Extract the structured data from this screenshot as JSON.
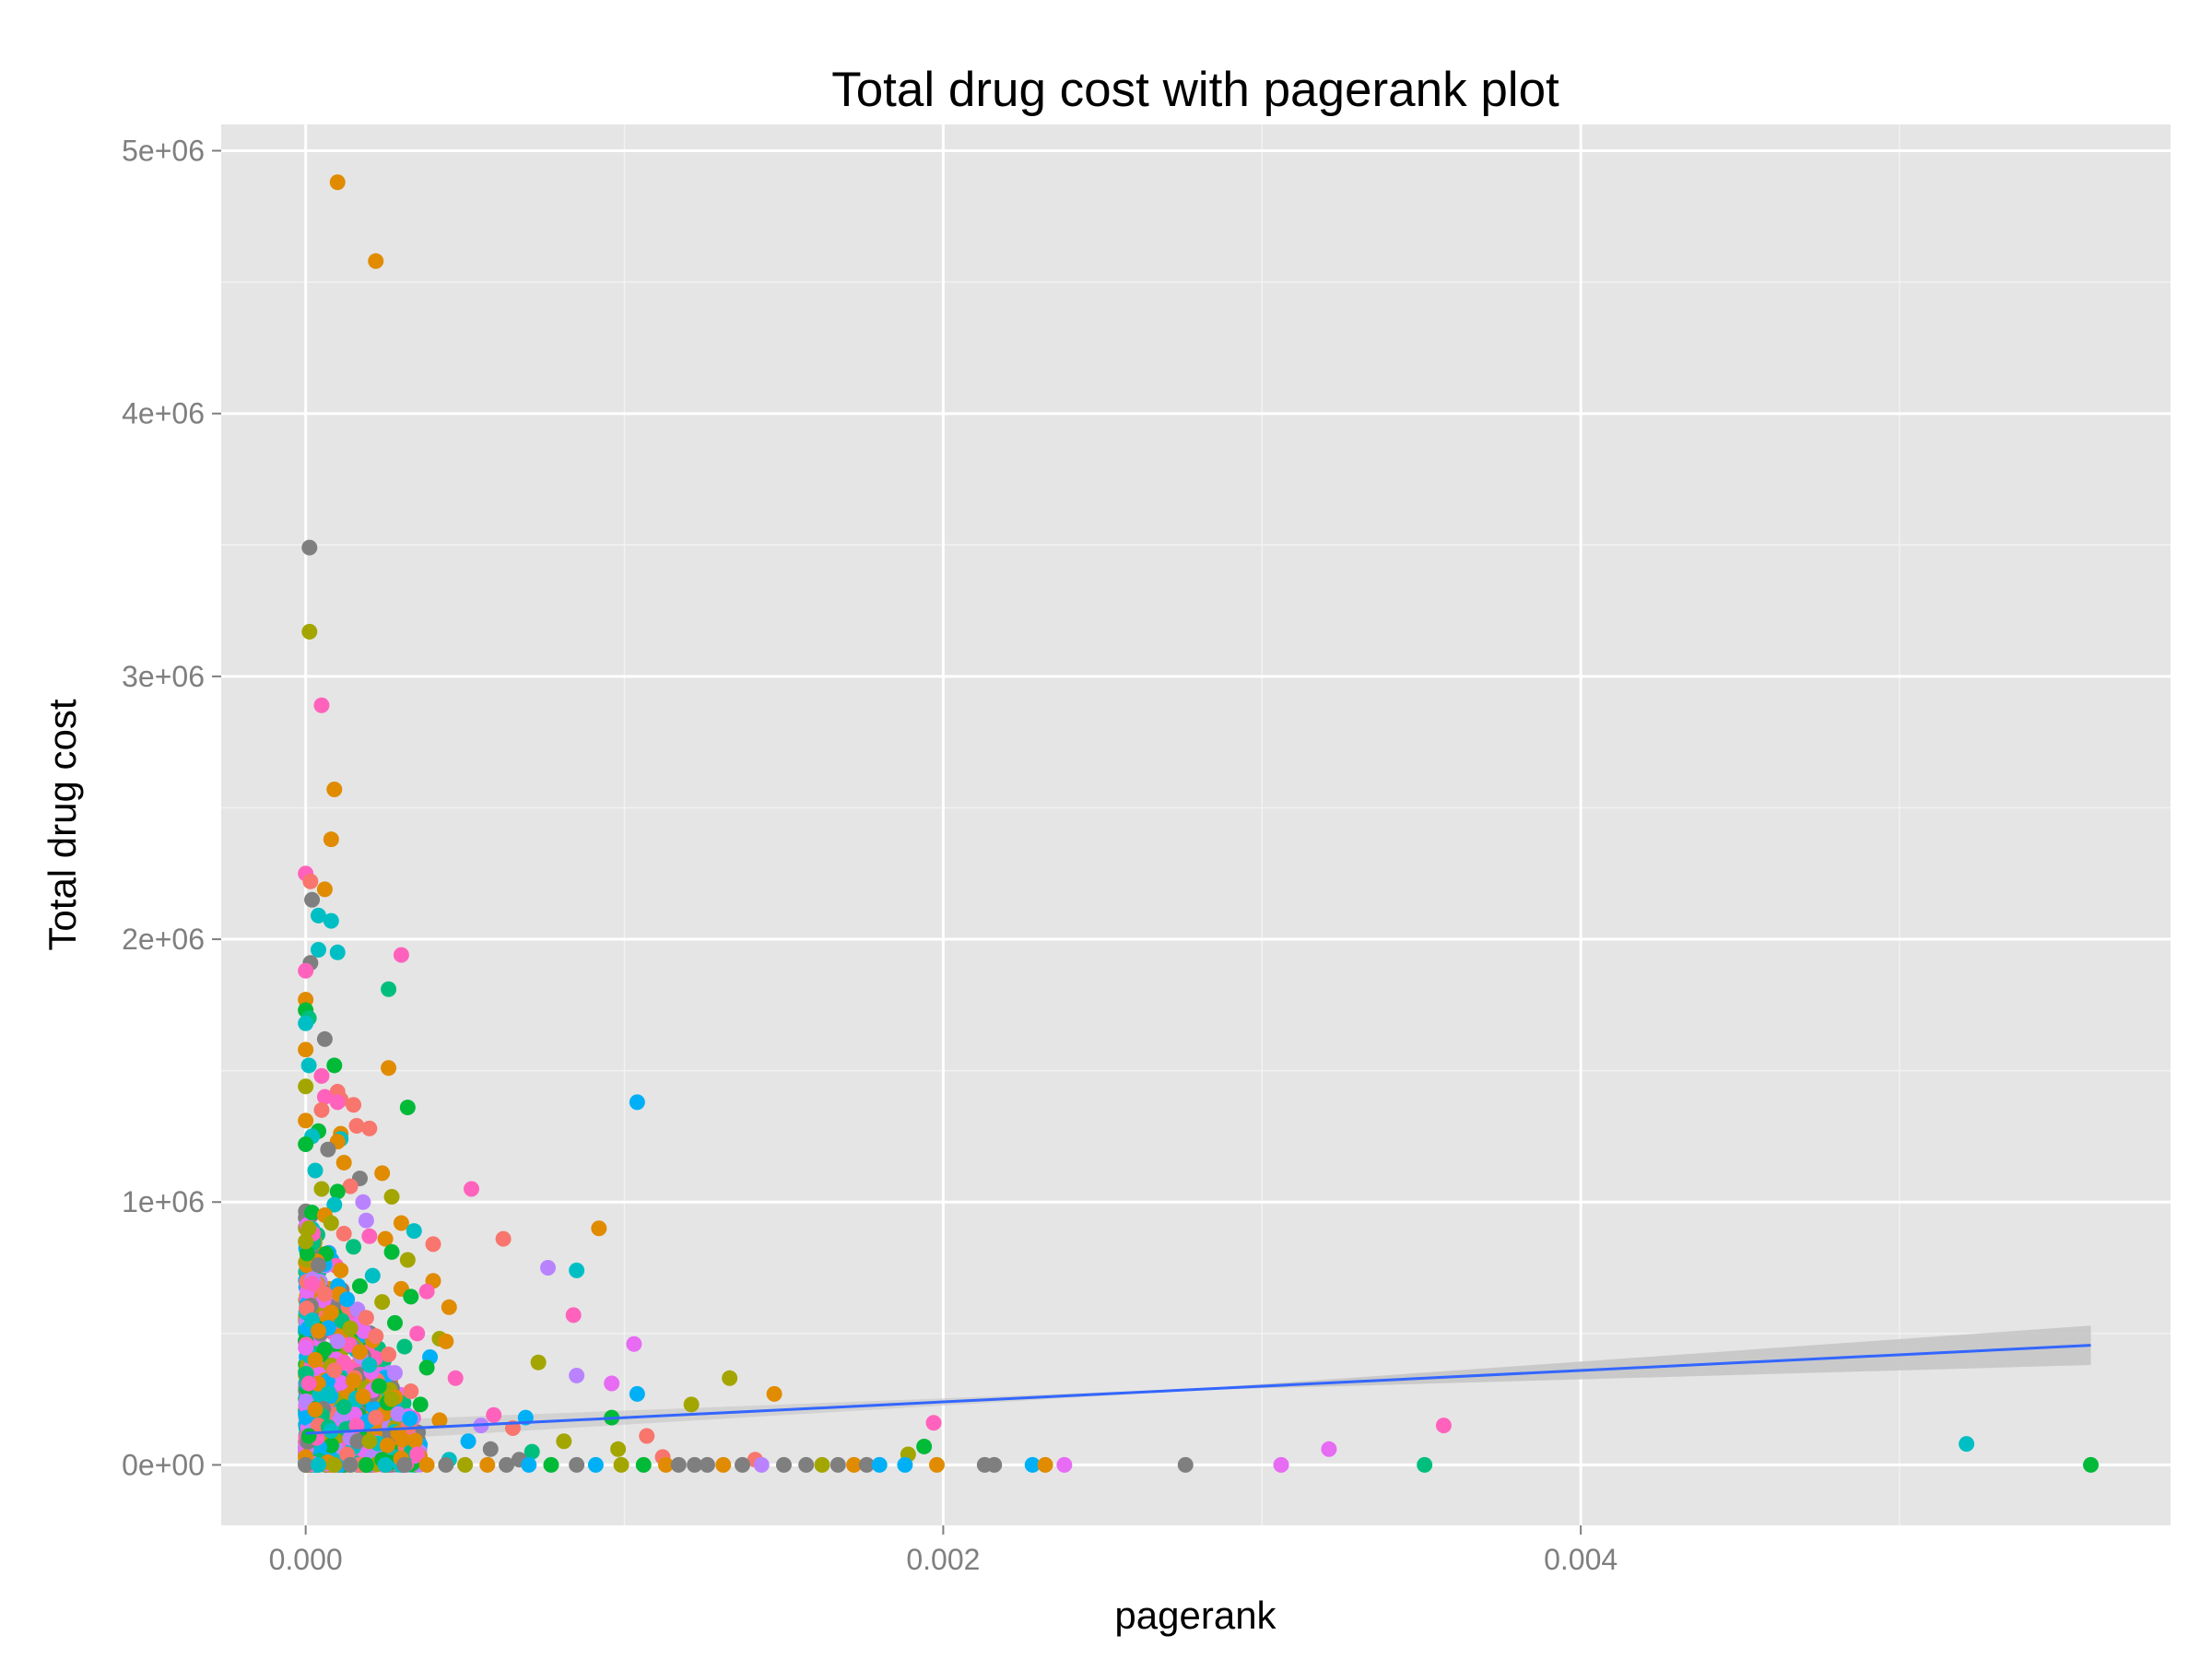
{
  "chart_data": {
    "type": "scatter",
    "title": "Total drug cost with pagerank plot",
    "xlabel": "pagerank",
    "ylabel": "Total drug cost",
    "xlim": [
      -0.000265,
      0.00585
    ],
    "ylim": [
      -230000,
      5100000
    ],
    "x_ticks": [
      0,
      0.002,
      0.004
    ],
    "x_tick_labels": [
      "0.000",
      "0.002",
      "0.004"
    ],
    "y_ticks": [
      0,
      1000000,
      2000000,
      3000000,
      4000000,
      5000000
    ],
    "y_tick_labels": [
      "0e+00",
      "1e+06",
      "2e+06",
      "3e+06",
      "4e+06",
      "5e+06"
    ],
    "grid": true,
    "background": "#e5e5e5",
    "grid_color": "#ffffff",
    "legend": "none",
    "colors": {
      "orange": "#e08b00",
      "olive": "#a3a500",
      "green": "#00bf7d",
      "cyan": "#00b0f6",
      "teal": "#00bfc4",
      "purple": "#b983ff",
      "pink": "#ff62bc",
      "salmon": "#f8766d",
      "gray": "#7f7f7f",
      "darkgreen": "#00ba38",
      "magenta": "#e76bf3",
      "smooth_line": "#3366ff",
      "ribbon": "#c4c4c4"
    },
    "points": [
      {
        "x": 0.0001,
        "y": 4880000,
        "c": "orange"
      },
      {
        "x": 0.00022,
        "y": 4580000,
        "c": "orange"
      },
      {
        "x": 1.2e-05,
        "y": 3490000,
        "c": "gray"
      },
      {
        "x": 1.2e-05,
        "y": 3170000,
        "c": "olive"
      },
      {
        "x": 5e-05,
        "y": 2890000,
        "c": "pink"
      },
      {
        "x": 9e-05,
        "y": 2570000,
        "c": "orange"
      },
      {
        "x": 8e-05,
        "y": 2380000,
        "c": "orange"
      },
      {
        "x": 0.0,
        "y": 2250000,
        "c": "pink"
      },
      {
        "x": 1.5e-05,
        "y": 2220000,
        "c": "salmon"
      },
      {
        "x": 6e-05,
        "y": 2190000,
        "c": "orange"
      },
      {
        "x": 2e-05,
        "y": 2150000,
        "c": "gray"
      },
      {
        "x": 4e-05,
        "y": 2090000,
        "c": "teal"
      },
      {
        "x": 8e-05,
        "y": 2070000,
        "c": "teal"
      },
      {
        "x": 4e-05,
        "y": 1960000,
        "c": "teal"
      },
      {
        "x": 0.0001,
        "y": 1950000,
        "c": "teal"
      },
      {
        "x": 0.0003,
        "y": 1940000,
        "c": "pink"
      },
      {
        "x": 1.5e-05,
        "y": 1910000,
        "c": "gray"
      },
      {
        "x": 0.0,
        "y": 1880000,
        "c": "pink"
      },
      {
        "x": 0.00026,
        "y": 1810000,
        "c": "green"
      },
      {
        "x": 0.0,
        "y": 1770000,
        "c": "orange"
      },
      {
        "x": 0.0,
        "y": 1730000,
        "c": "darkgreen"
      },
      {
        "x": 1e-05,
        "y": 1700000,
        "c": "green"
      },
      {
        "x": 0.0,
        "y": 1680000,
        "c": "teal"
      },
      {
        "x": 6e-05,
        "y": 1620000,
        "c": "gray"
      },
      {
        "x": 0.0,
        "y": 1580000,
        "c": "orange"
      },
      {
        "x": 9e-05,
        "y": 1520000,
        "c": "darkgreen"
      },
      {
        "x": 1e-05,
        "y": 1520000,
        "c": "teal"
      },
      {
        "x": 0.00026,
        "y": 1510000,
        "c": "orange"
      },
      {
        "x": 5e-05,
        "y": 1480000,
        "c": "pink"
      },
      {
        "x": 0.0,
        "y": 1440000,
        "c": "olive"
      },
      {
        "x": 0.0001,
        "y": 1420000,
        "c": "salmon"
      },
      {
        "x": 6e-05,
        "y": 1400000,
        "c": "pink"
      },
      {
        "x": 0.00011,
        "y": 1390000,
        "c": "salmon"
      },
      {
        "x": 0.00015,
        "y": 1370000,
        "c": "salmon"
      },
      {
        "x": 0.0001,
        "y": 1380000,
        "c": "pink"
      },
      {
        "x": 0.00032,
        "y": 1360000,
        "c": "darkgreen"
      },
      {
        "x": 0.00104,
        "y": 1380000,
        "c": "cyan"
      },
      {
        "x": 5e-05,
        "y": 1350000,
        "c": "salmon"
      },
      {
        "x": 0.0,
        "y": 1310000,
        "c": "orange"
      },
      {
        "x": 0.00016,
        "y": 1290000,
        "c": "salmon"
      },
      {
        "x": 0.0002,
        "y": 1280000,
        "c": "salmon"
      },
      {
        "x": 4e-05,
        "y": 1270000,
        "c": "darkgreen"
      },
      {
        "x": 0.00011,
        "y": 1260000,
        "c": "orange"
      },
      {
        "x": 2e-05,
        "y": 1250000,
        "c": "teal"
      },
      {
        "x": 0.00011,
        "y": 1240000,
        "c": "teal"
      },
      {
        "x": 0.0001,
        "y": 1230000,
        "c": "orange"
      },
      {
        "x": 0.0,
        "y": 1220000,
        "c": "darkgreen"
      },
      {
        "x": 7e-05,
        "y": 1200000,
        "c": "gray"
      },
      {
        "x": 0.00012,
        "y": 1150000,
        "c": "orange"
      },
      {
        "x": 3e-05,
        "y": 1120000,
        "c": "teal"
      },
      {
        "x": 0.00024,
        "y": 1110000,
        "c": "orange"
      },
      {
        "x": 0.00017,
        "y": 1090000,
        "c": "gray"
      },
      {
        "x": 0.00014,
        "y": 1060000,
        "c": "salmon"
      },
      {
        "x": 0.00052,
        "y": 1050000,
        "c": "pink"
      },
      {
        "x": 5e-05,
        "y": 1050000,
        "c": "olive"
      },
      {
        "x": 0.0001,
        "y": 1040000,
        "c": "darkgreen"
      },
      {
        "x": 0.00027,
        "y": 1020000,
        "c": "olive"
      },
      {
        "x": 0.00018,
        "y": 1000000,
        "c": "purple"
      },
      {
        "x": 9e-05,
        "y": 990000,
        "c": "teal"
      },
      {
        "x": 2e-05,
        "y": 960000,
        "c": "darkgreen"
      },
      {
        "x": 6e-05,
        "y": 950000,
        "c": "orange"
      },
      {
        "x": 0.00019,
        "y": 930000,
        "c": "purple"
      },
      {
        "x": 8e-05,
        "y": 920000,
        "c": "olive"
      },
      {
        "x": 0.0003,
        "y": 920000,
        "c": "orange"
      },
      {
        "x": 0.00092,
        "y": 900000,
        "c": "orange"
      },
      {
        "x": 0.00034,
        "y": 890000,
        "c": "teal"
      },
      {
        "x": 0.00012,
        "y": 880000,
        "c": "salmon"
      },
      {
        "x": 0.0002,
        "y": 870000,
        "c": "pink"
      },
      {
        "x": 0.00025,
        "y": 860000,
        "c": "orange"
      },
      {
        "x": 0.00062,
        "y": 860000,
        "c": "salmon"
      },
      {
        "x": 0.0,
        "y": 850000,
        "c": "olive"
      },
      {
        "x": 0.0004,
        "y": 840000,
        "c": "salmon"
      },
      {
        "x": 0.00015,
        "y": 830000,
        "c": "green"
      },
      {
        "x": 0.00027,
        "y": 810000,
        "c": "darkgreen"
      },
      {
        "x": 0.00032,
        "y": 780000,
        "c": "olive"
      },
      {
        "x": 0.00076,
        "y": 750000,
        "c": "purple"
      },
      {
        "x": 0.00085,
        "y": 740000,
        "c": "teal"
      },
      {
        "x": 4e-05,
        "y": 760000,
        "c": "gray"
      },
      {
        "x": 0.00011,
        "y": 740000,
        "c": "orange"
      },
      {
        "x": 0.00021,
        "y": 720000,
        "c": "teal"
      },
      {
        "x": 0.0004,
        "y": 700000,
        "c": "orange"
      },
      {
        "x": 2e-05,
        "y": 690000,
        "c": "pink"
      },
      {
        "x": 0.00017,
        "y": 680000,
        "c": "darkgreen"
      },
      {
        "x": 0.0003,
        "y": 670000,
        "c": "orange"
      },
      {
        "x": 0.00038,
        "y": 660000,
        "c": "pink"
      },
      {
        "x": 6e-05,
        "y": 650000,
        "c": "salmon"
      },
      {
        "x": 0.00033,
        "y": 640000,
        "c": "darkgreen"
      },
      {
        "x": 0.00013,
        "y": 630000,
        "c": "cyan"
      },
      {
        "x": 0.00024,
        "y": 620000,
        "c": "olive"
      },
      {
        "x": 0.00045,
        "y": 600000,
        "c": "orange"
      },
      {
        "x": 0.00084,
        "y": 570000,
        "c": "pink"
      },
      {
        "x": 8e-05,
        "y": 580000,
        "c": "orange"
      },
      {
        "x": 0.00019,
        "y": 560000,
        "c": "salmon"
      },
      {
        "x": 2e-05,
        "y": 550000,
        "c": "teal"
      },
      {
        "x": 0.00028,
        "y": 540000,
        "c": "darkgreen"
      },
      {
        "x": 0.00014,
        "y": 520000,
        "c": "olive"
      },
      {
        "x": 4e-05,
        "y": 510000,
        "c": "orange"
      },
      {
        "x": 0.00035,
        "y": 500000,
        "c": "pink"
      },
      {
        "x": 0.00022,
        "y": 490000,
        "c": "salmon"
      },
      {
        "x": 0.00042,
        "y": 480000,
        "c": "olive"
      },
      {
        "x": 0.00044,
        "y": 470000,
        "c": "orange"
      },
      {
        "x": 0.00103,
        "y": 460000,
        "c": "magenta"
      },
      {
        "x": 0.0001,
        "y": 470000,
        "c": "purple"
      },
      {
        "x": 0.00031,
        "y": 450000,
        "c": "green"
      },
      {
        "x": 6e-05,
        "y": 440000,
        "c": "darkgreen"
      },
      {
        "x": 0.00017,
        "y": 430000,
        "c": "orange"
      },
      {
        "x": 0.00026,
        "y": 420000,
        "c": "salmon"
      },
      {
        "x": 0.00039,
        "y": 410000,
        "c": "cyan"
      },
      {
        "x": 3e-05,
        "y": 400000,
        "c": "orange"
      },
      {
        "x": 0.00073,
        "y": 390000,
        "c": "olive"
      },
      {
        "x": 0.00012,
        "y": 390000,
        "c": "pink"
      },
      {
        "x": 0.0002,
        "y": 380000,
        "c": "teal"
      },
      {
        "x": 0.00038,
        "y": 370000,
        "c": "darkgreen"
      },
      {
        "x": 9e-05,
        "y": 360000,
        "c": "salmon"
      },
      {
        "x": 0.00028,
        "y": 350000,
        "c": "purple"
      },
      {
        "x": 0.00085,
        "y": 340000,
        "c": "purple"
      },
      {
        "x": 0.00133,
        "y": 330000,
        "c": "olive"
      },
      {
        "x": 0.00047,
        "y": 330000,
        "c": "pink"
      },
      {
        "x": 0.00015,
        "y": 320000,
        "c": "orange"
      },
      {
        "x": 1e-05,
        "y": 310000,
        "c": "pink"
      },
      {
        "x": 0.00096,
        "y": 310000,
        "c": "magenta"
      },
      {
        "x": 0.00023,
        "y": 300000,
        "c": "darkgreen"
      },
      {
        "x": 0.00104,
        "y": 270000,
        "c": "cyan"
      },
      {
        "x": 0.00147,
        "y": 270000,
        "c": "orange"
      },
      {
        "x": 0.00033,
        "y": 280000,
        "c": "salmon"
      },
      {
        "x": 7e-05,
        "y": 270000,
        "c": "teal"
      },
      {
        "x": 0.00018,
        "y": 260000,
        "c": "orange"
      },
      {
        "x": 0.00027,
        "y": 250000,
        "c": "olive"
      },
      {
        "x": 0.00121,
        "y": 230000,
        "c": "olive"
      },
      {
        "x": 0.00036,
        "y": 230000,
        "c": "darkgreen"
      },
      {
        "x": 0.00012,
        "y": 220000,
        "c": "green"
      },
      {
        "x": 3e-05,
        "y": 210000,
        "c": "orange"
      },
      {
        "x": 0.00059,
        "y": 190000,
        "c": "pink"
      },
      {
        "x": 0.00069,
        "y": 180000,
        "c": "cyan"
      },
      {
        "x": 0.00096,
        "y": 180000,
        "c": "darkgreen"
      },
      {
        "x": 0.00197,
        "y": 160000,
        "c": "pink"
      },
      {
        "x": 0.00357,
        "y": 150000,
        "c": "pink"
      },
      {
        "x": 0.00022,
        "y": 180000,
        "c": "salmon"
      },
      {
        "x": 0.00042,
        "y": 170000,
        "c": "orange"
      },
      {
        "x": 0.00055,
        "y": 150000,
        "c": "purple"
      },
      {
        "x": 0.00016,
        "y": 150000,
        "c": "pink"
      },
      {
        "x": 0.00065,
        "y": 140000,
        "c": "salmon"
      },
      {
        "x": 8e-05,
        "y": 130000,
        "c": "teal"
      },
      {
        "x": 0.00029,
        "y": 120000,
        "c": "orange"
      },
      {
        "x": 0.00107,
        "y": 110000,
        "c": "salmon"
      },
      {
        "x": 1e-05,
        "y": 110000,
        "c": "darkgreen"
      },
      {
        "x": 0.00081,
        "y": 90000,
        "c": "olive"
      },
      {
        "x": 0.00051,
        "y": 90000,
        "c": "cyan"
      },
      {
        "x": 0.0002,
        "y": 90000,
        "c": "olive"
      },
      {
        "x": 0.00521,
        "y": 80000,
        "c": "teal"
      },
      {
        "x": 0.00194,
        "y": 70000,
        "c": "darkgreen"
      },
      {
        "x": 0.00321,
        "y": 60000,
        "c": "magenta"
      },
      {
        "x": 0.00098,
        "y": 60000,
        "c": "olive"
      },
      {
        "x": 0.00058,
        "y": 60000,
        "c": "gray"
      },
      {
        "x": 0.00071,
        "y": 50000,
        "c": "green"
      },
      {
        "x": 0.00189,
        "y": 40000,
        "c": "olive"
      },
      {
        "x": 0.00035,
        "y": 40000,
        "c": "pink"
      },
      {
        "x": 0.00013,
        "y": 40000,
        "c": "salmon"
      },
      {
        "x": 0.0,
        "y": 30000,
        "c": "orange"
      },
      {
        "x": 0.00112,
        "y": 30000,
        "c": "salmon"
      },
      {
        "x": 0.00141,
        "y": 20000,
        "c": "salmon"
      },
      {
        "x": 0.00067,
        "y": 20000,
        "c": "gray"
      },
      {
        "x": 0.00045,
        "y": 20000,
        "c": "teal"
      },
      {
        "x": 0.00024,
        "y": 20000,
        "c": "darkgreen"
      },
      {
        "x": 7e-05,
        "y": 10000,
        "c": "orange"
      },
      {
        "x": 0.0,
        "y": 0,
        "c": "gray"
      },
      {
        "x": 4e-05,
        "y": 0,
        "c": "teal"
      },
      {
        "x": 9e-05,
        "y": 0,
        "c": "olive"
      },
      {
        "x": 0.00014,
        "y": 0,
        "c": "gray"
      },
      {
        "x": 0.00019,
        "y": 0,
        "c": "darkgreen"
      },
      {
        "x": 0.00025,
        "y": 0,
        "c": "teal"
      },
      {
        "x": 0.00031,
        "y": 0,
        "c": "gray"
      },
      {
        "x": 0.00038,
        "y": 0,
        "c": "orange"
      },
      {
        "x": 0.00044,
        "y": 0,
        "c": "gray"
      },
      {
        "x": 0.0005,
        "y": 0,
        "c": "olive"
      },
      {
        "x": 0.00057,
        "y": 0,
        "c": "orange"
      },
      {
        "x": 0.00063,
        "y": 0,
        "c": "gray"
      },
      {
        "x": 0.0007,
        "y": 0,
        "c": "cyan"
      },
      {
        "x": 0.00077,
        "y": 0,
        "c": "darkgreen"
      },
      {
        "x": 0.00085,
        "y": 0,
        "c": "gray"
      },
      {
        "x": 0.00091,
        "y": 0,
        "c": "cyan"
      },
      {
        "x": 0.00099,
        "y": 0,
        "c": "olive"
      },
      {
        "x": 0.00106,
        "y": 0,
        "c": "darkgreen"
      },
      {
        "x": 0.00113,
        "y": 0,
        "c": "orange"
      },
      {
        "x": 0.00117,
        "y": 0,
        "c": "gray"
      },
      {
        "x": 0.00122,
        "y": 0,
        "c": "gray"
      },
      {
        "x": 0.00126,
        "y": 0,
        "c": "gray"
      },
      {
        "x": 0.00131,
        "y": 0,
        "c": "orange"
      },
      {
        "x": 0.00137,
        "y": 0,
        "c": "gray"
      },
      {
        "x": 0.00143,
        "y": 0,
        "c": "purple"
      },
      {
        "x": 0.0015,
        "y": 0,
        "c": "gray"
      },
      {
        "x": 0.00157,
        "y": 0,
        "c": "gray"
      },
      {
        "x": 0.00162,
        "y": 0,
        "c": "olive"
      },
      {
        "x": 0.00167,
        "y": 0,
        "c": "gray"
      },
      {
        "x": 0.00172,
        "y": 0,
        "c": "orange"
      },
      {
        "x": 0.00176,
        "y": 0,
        "c": "gray"
      },
      {
        "x": 0.0018,
        "y": 0,
        "c": "cyan"
      },
      {
        "x": 0.00188,
        "y": 0,
        "c": "cyan"
      },
      {
        "x": 0.00198,
        "y": 0,
        "c": "orange"
      },
      {
        "x": 0.00213,
        "y": 0,
        "c": "gray"
      },
      {
        "x": 0.00216,
        "y": 0,
        "c": "gray"
      },
      {
        "x": 0.00228,
        "y": 0,
        "c": "cyan"
      },
      {
        "x": 0.00232,
        "y": 0,
        "c": "orange"
      },
      {
        "x": 0.00238,
        "y": 0,
        "c": "magenta"
      },
      {
        "x": 0.00276,
        "y": 0,
        "c": "gray"
      },
      {
        "x": 0.00306,
        "y": 0,
        "c": "magenta"
      },
      {
        "x": 0.00351,
        "y": 0,
        "c": "green"
      },
      {
        "x": 0.0056,
        "y": 0,
        "c": "darkgreen"
      }
    ],
    "smooth": {
      "x": [
        0.0,
        0.0056
      ],
      "y": [
        120000,
        455000
      ],
      "ribbon_lower": [
        80000,
        380000
      ],
      "ribbon_upper": [
        160000,
        530000
      ],
      "ribbon_start_x": 0.0028
    }
  }
}
